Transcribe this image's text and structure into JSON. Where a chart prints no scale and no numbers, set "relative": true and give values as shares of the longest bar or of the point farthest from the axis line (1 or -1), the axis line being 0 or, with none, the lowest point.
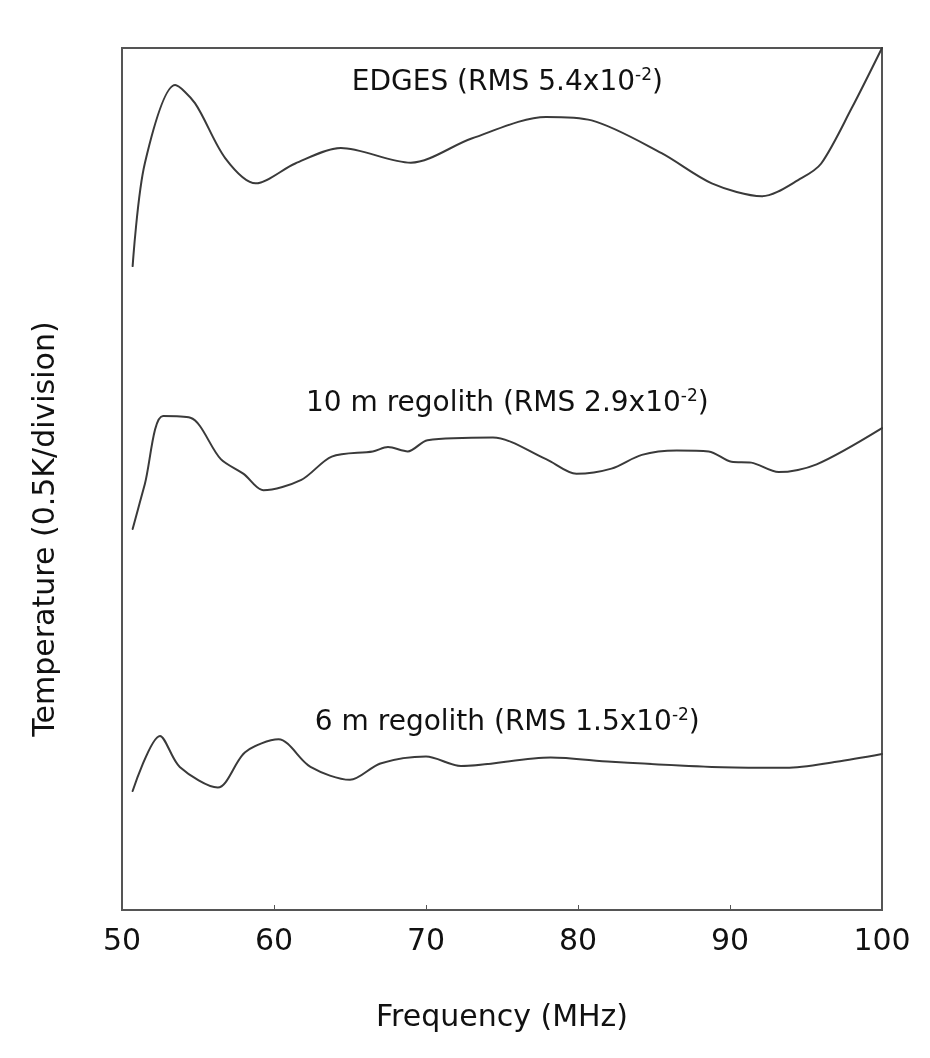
{
  "chart_data": {
    "type": "line",
    "xlabel": "Frequency (MHz)",
    "ylabel": "Temperature (0.5K/division)",
    "relative": true,
    "xlim": [
      50,
      100
    ],
    "xticks": [
      50,
      60,
      70,
      80,
      90,
      100
    ],
    "grid": false,
    "legend": false,
    "marker": "none",
    "line_style": "solid",
    "series": [
      {
        "name": "EDGES (RMS 5.4x10$^{-2}$)",
        "color": "#3a3a3a",
        "x": [
          50.7,
          51.5,
          53.5,
          54.8,
          56.8,
          58.8,
          61.4,
          64.4,
          69.0,
          73.0,
          77.9,
          80.9,
          85.5,
          88.8,
          92.1,
          94.7,
          96.0,
          98.0,
          100
        ],
        "values": [
          0.747,
          0.866,
          0.957,
          0.936,
          0.872,
          0.843,
          0.866,
          0.884,
          0.867,
          0.895,
          0.92,
          0.916,
          0.878,
          0.843,
          0.828,
          0.849,
          0.866,
          0.93,
          1
        ]
      },
      {
        "name": "10 m regolith (RMS 2.9x10$^{-2}$)",
        "color": "#3a3a3a",
        "x": [
          50.7,
          51.5,
          52.7,
          54.5,
          56.5,
          58.0,
          59.3,
          61.8,
          63.8,
          66.5,
          67.5,
          68.8,
          70.1,
          74.4,
          77.9,
          79.9,
          82.2,
          84.2,
          86.5,
          88.6,
          90.1,
          91.4,
          93.2,
          95.7,
          100
        ],
        "values": [
          0.442,
          0.494,
          0.573,
          0.571,
          0.523,
          0.506,
          0.487,
          0.499,
          0.526,
          0.532,
          0.537,
          0.532,
          0.545,
          0.548,
          0.523,
          0.506,
          0.512,
          0.528,
          0.533,
          0.532,
          0.52,
          0.519,
          0.508,
          0.517,
          0.559
        ]
      },
      {
        "name": "6 m regolith (RMS 1.5x10$^{-2}$)",
        "color": "#3a3a3a",
        "x": [
          50.7,
          52.5,
          53.8,
          56.3,
          58.1,
          60.3,
          62.4,
          65.0,
          67.0,
          70.0,
          72.3,
          78.2,
          82.2,
          88.8,
          93.7,
          97.0,
          100
        ],
        "values": [
          0.138,
          0.202,
          0.166,
          0.142,
          0.183,
          0.198,
          0.166,
          0.151,
          0.17,
          0.178,
          0.167,
          0.177,
          0.172,
          0.166,
          0.165,
          0.172,
          0.181
        ]
      }
    ]
  }
}
